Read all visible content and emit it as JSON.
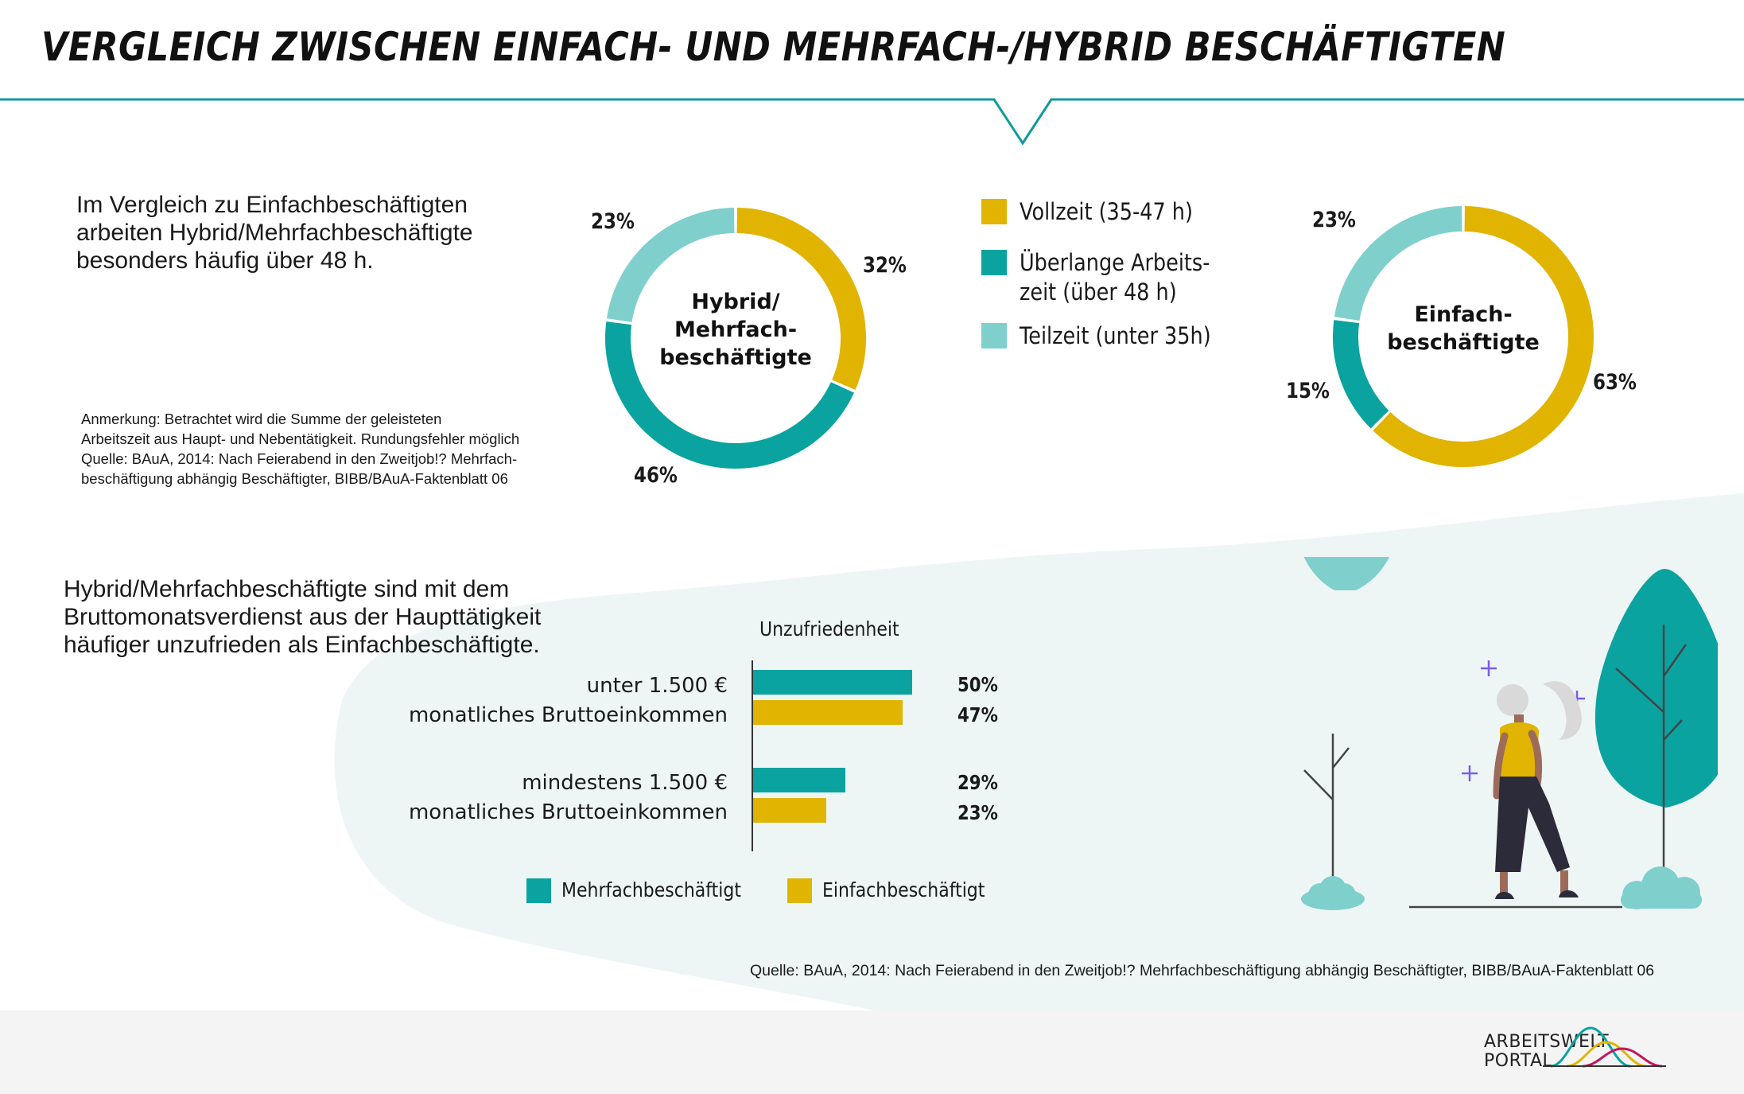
{
  "title": "VERGLEICH ZWISCHEN EINFACH- UND MEHRFACH-/HYBRID BESCHÄFTIGTEN",
  "intro_top": [
    "Im Vergleich zu Einfachbeschäftigten",
    "arbeiten Hybrid/Mehrfachbeschäftigte",
    "besonders häufig über 48 h."
  ],
  "note": [
    "Anmerkung: Betrachtet wird die Summe der geleisteten",
    "Arbeitszeit aus Haupt- und Nebentätigkeit. Rundungsfehler möglich",
    "Quelle: BAuA, 2014: Nach Feierabend in den Zweitjob!? Mehrfach-",
    "beschäftigung abhängig Beschäftigter, BIBB/BAuA-Faktenblatt 06"
  ],
  "colors": {
    "vollzeit": "#e0b400",
    "ueberlang": "#0aa3a0",
    "teilzeit": "#7fd0cd",
    "teal_line": "#0f9a9a",
    "bg_blob": "#eef6f5"
  },
  "legend": [
    {
      "key": "vollzeit",
      "lines": [
        "Vollzeit (35-47 h)"
      ]
    },
    {
      "key": "ueberlang",
      "lines": [
        "Überlange Arbeits-",
        "zeit (über 48 h)"
      ]
    },
    {
      "key": "teilzeit",
      "lines": [
        "Teilzeit (unter 35h)"
      ]
    }
  ],
  "intro_bottom": [
    "Hybrid/Mehrfachbeschäftigte sind mit dem",
    "Bruttomonatsverdienst aus der Haupttätigkeit",
    "häufiger unzufrieden als Einfachbeschäftigte."
  ],
  "source": "Quelle: BAuA, 2014: Nach Feierabend in den Zweitjob!? Mehrfachbeschäftigung abhängig Beschäftigter, BIBB/BAuA-Faktenblatt 06",
  "logo": {
    "line1": "ARBEITSWELT",
    "line2": "PORTAL"
  },
  "chart_data": [
    {
      "type": "pie",
      "title": "Hybrid/ Mehrfachbeschäftigte",
      "center_lines": [
        "Hybrid/",
        "Mehrfach-",
        "beschäftigte"
      ],
      "labels": [
        "Vollzeit (35-47 h)",
        "Überlange Arbeitszeit (über 48 h)",
        "Teilzeit (unter 35h)"
      ],
      "values": [
        32,
        46,
        23
      ],
      "value_labels": [
        "32%",
        "46%",
        "23%"
      ]
    },
    {
      "type": "pie",
      "title": "Einfachbeschäftigte",
      "center_lines": [
        "Einfach-",
        "beschäftigte"
      ],
      "labels": [
        "Vollzeit (35-47 h)",
        "Überlange Arbeitszeit (über 48 h)",
        "Teilzeit (unter 35h)"
      ],
      "values": [
        63,
        15,
        23
      ],
      "value_labels": [
        "63%",
        "15%",
        "23%"
      ]
    },
    {
      "type": "bar",
      "title": "Unzufriedenheit",
      "categories": [
        [
          "unter 1.500 €",
          "monatliches Bruttoeinkommen"
        ],
        [
          "mindestens 1.500 €",
          "monatliches Bruttoeinkommen"
        ]
      ],
      "series": [
        {
          "name": "Mehrfachbeschäftigt",
          "values": [
            50,
            29
          ],
          "labels": [
            "50%",
            "29%"
          ]
        },
        {
          "name": "Einfachbeschäftigt",
          "values": [
            47,
            23
          ],
          "labels": [
            "47%",
            "23%"
          ]
        }
      ]
    }
  ]
}
